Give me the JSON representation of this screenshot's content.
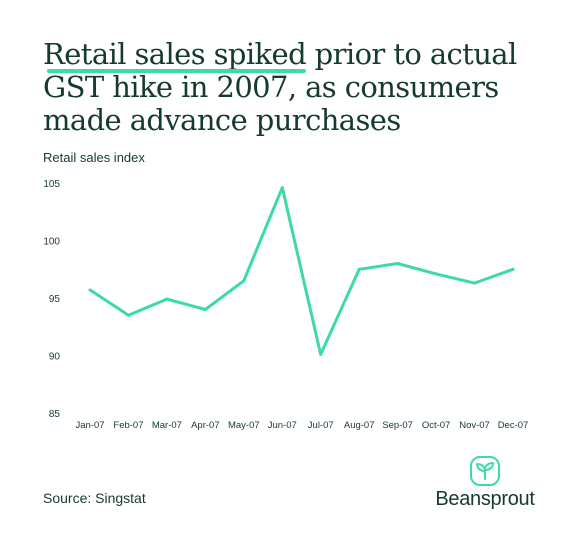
{
  "title": {
    "highlight": "Retail sales spiked",
    "rest": " prior to actual GST hike in 2007, as consumers made advance purchases"
  },
  "subtitle": "Retail sales index",
  "source": "Source: Singstat",
  "brand": {
    "name": "Beansprout",
    "icon": "sprout-icon"
  },
  "colors": {
    "line": "#3ddba4",
    "text": "#153a2e",
    "accent": "#3ddba4"
  },
  "chart_data": {
    "type": "line",
    "title": "Retail sales spiked prior to actual GST hike in 2007, as consumers made advance purchases",
    "ylabel": "Retail sales index",
    "xlabel": "",
    "categories": [
      "Jan-07",
      "Feb-07",
      "Mar-07",
      "Apr-07",
      "May-07",
      "Jun-07",
      "Jul-07",
      "Aug-07",
      "Sep-07",
      "Oct-07",
      "Nov-07",
      "Dec-07"
    ],
    "series": [
      {
        "values": [
          95.7,
          93.5,
          94.9,
          94.0,
          96.5,
          104.6,
          90.1,
          97.5,
          98.0,
          97.1,
          96.3,
          97.5
        ]
      }
    ],
    "ylim": [
      85,
      105
    ],
    "yticks": [
      85,
      90,
      95,
      100,
      105
    ],
    "grid": false,
    "legend": "none"
  }
}
